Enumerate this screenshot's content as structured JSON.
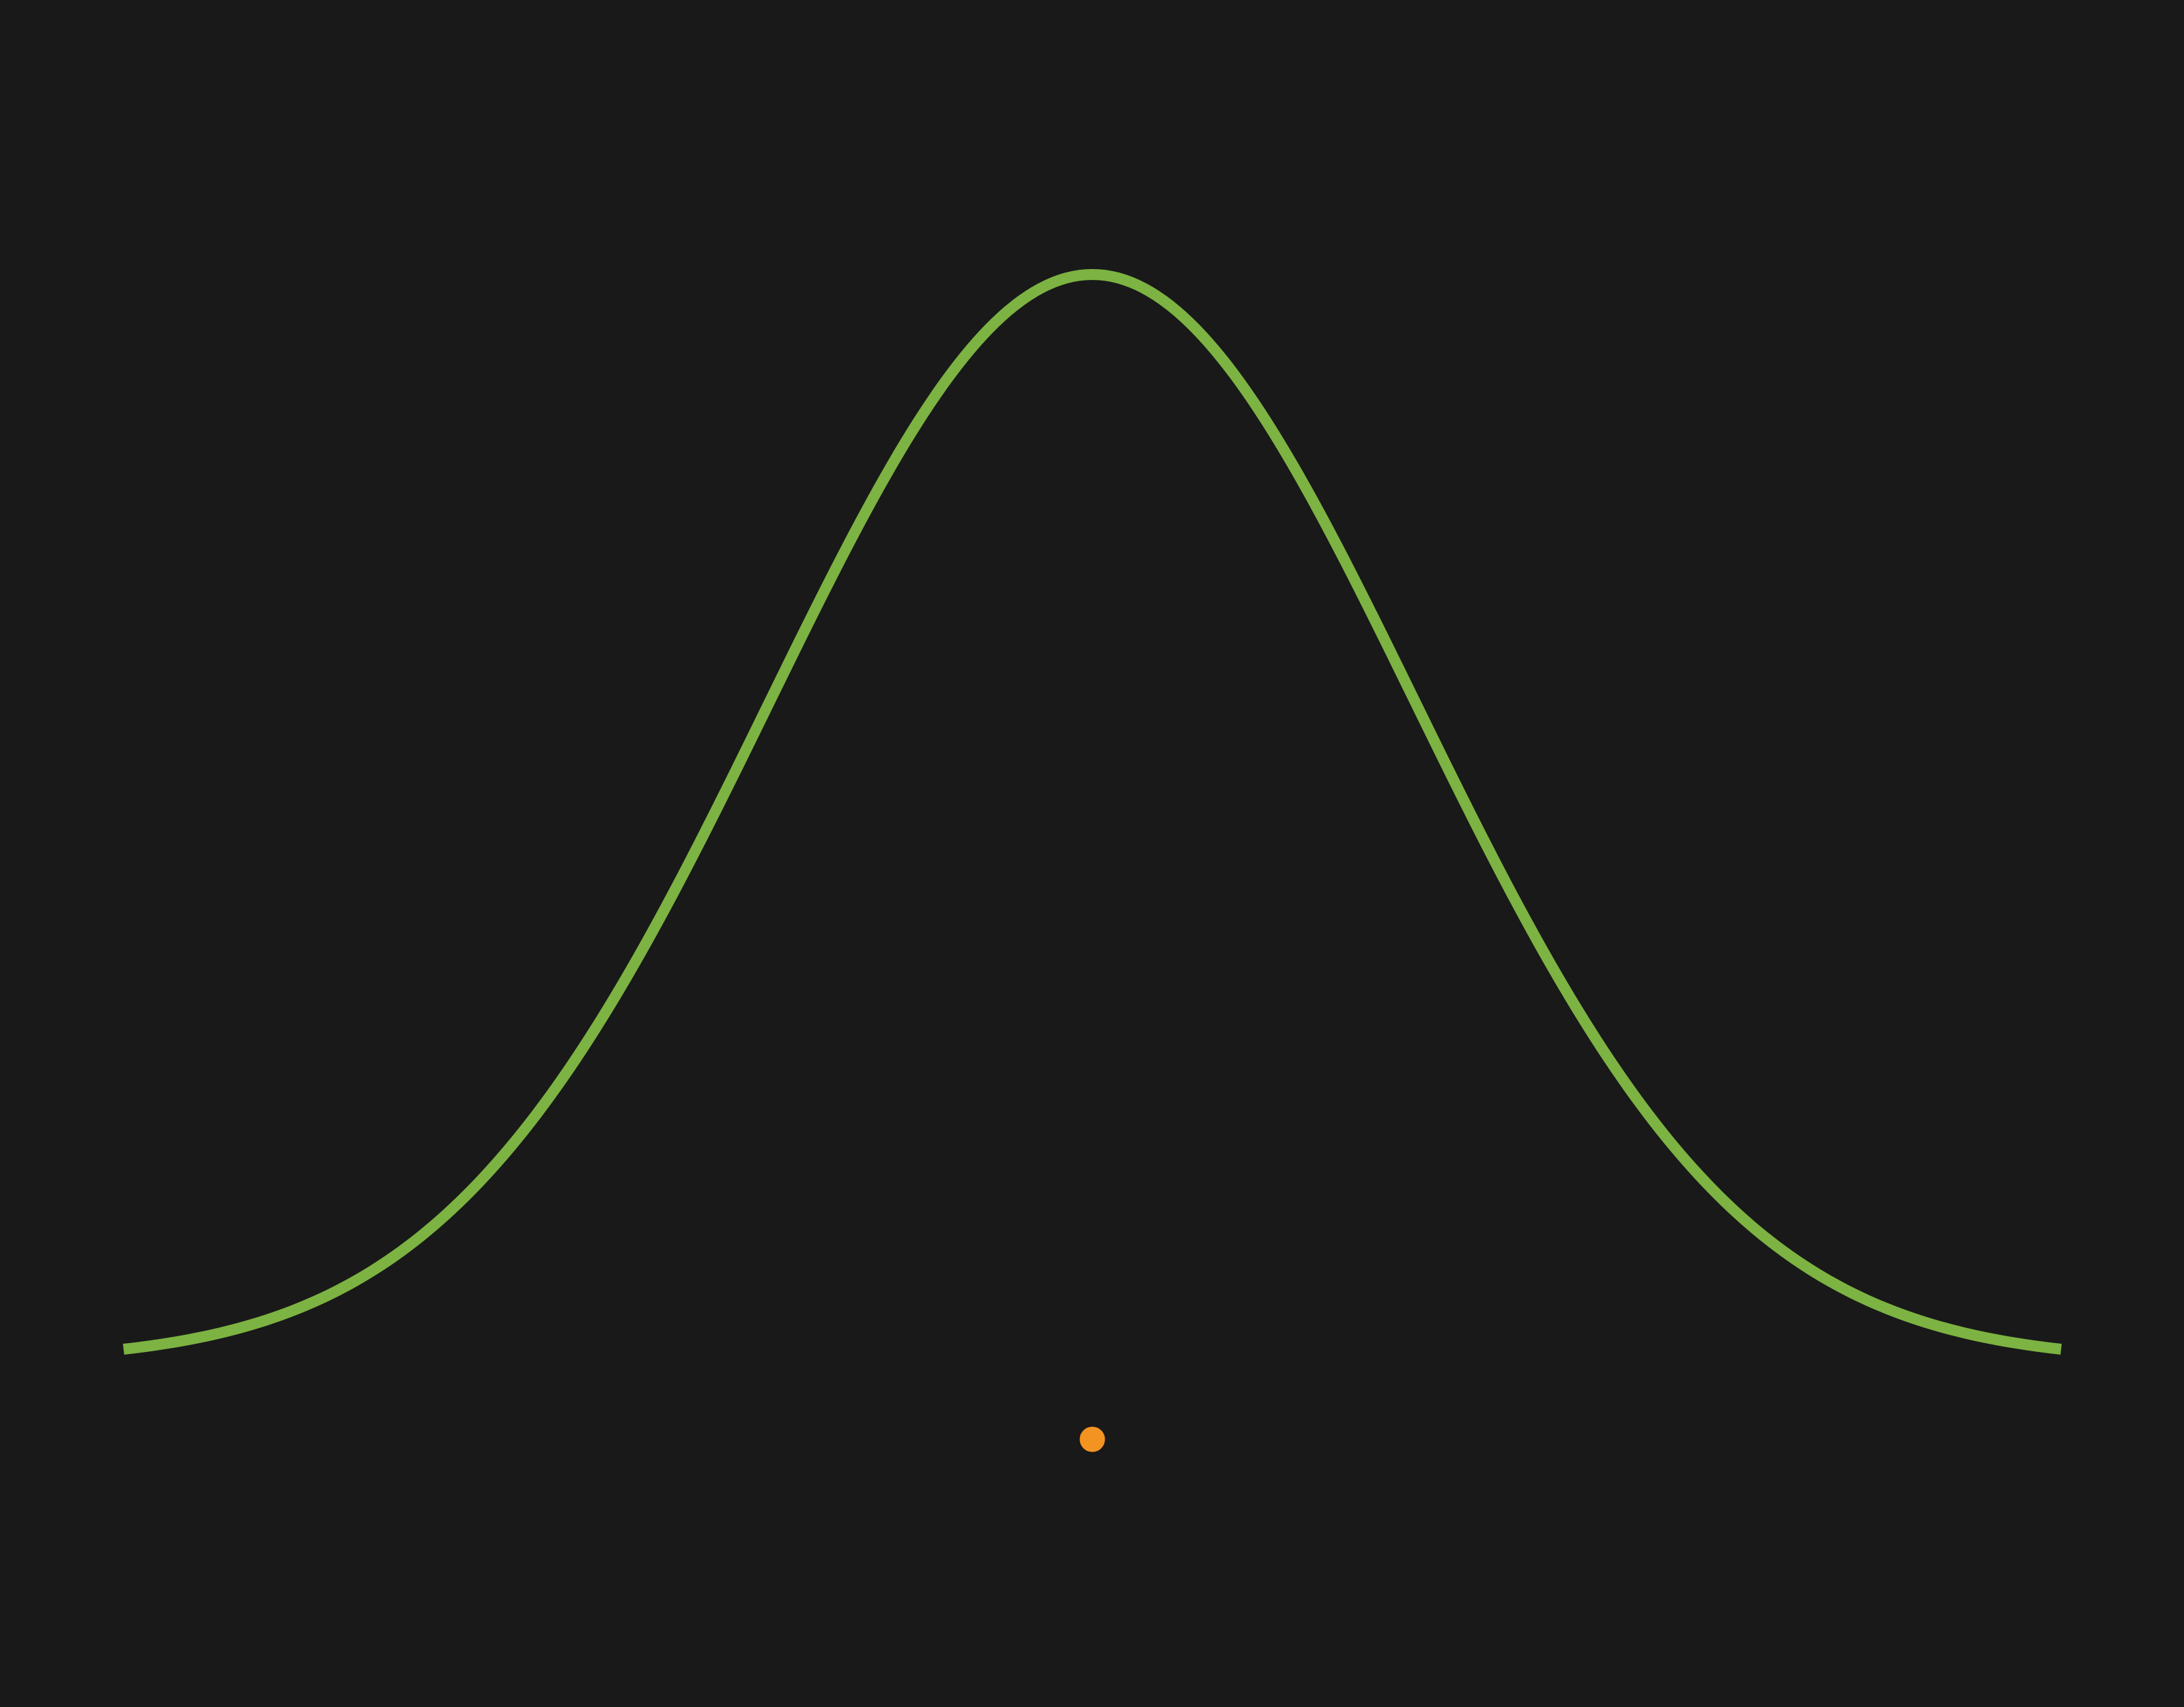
{
  "colors": {
    "background": "#191919",
    "curve": "#7cb342",
    "marker": "#f39321",
    "marker_outline": "#191919"
  },
  "chart_data": {
    "type": "line",
    "title": "",
    "xlabel": "",
    "ylabel": "",
    "grid": false,
    "legend": "none",
    "xlim": [
      -3,
      3
    ],
    "ylim": [
      -0.08,
      0.45
    ],
    "series": [
      {
        "curve": "normal-density",
        "mean": 0,
        "std": 1,
        "x_start": -3,
        "x_end": 3,
        "samples": 301
      }
    ],
    "points": [
      {
        "x": 0,
        "y": -0.027
      }
    ]
  }
}
